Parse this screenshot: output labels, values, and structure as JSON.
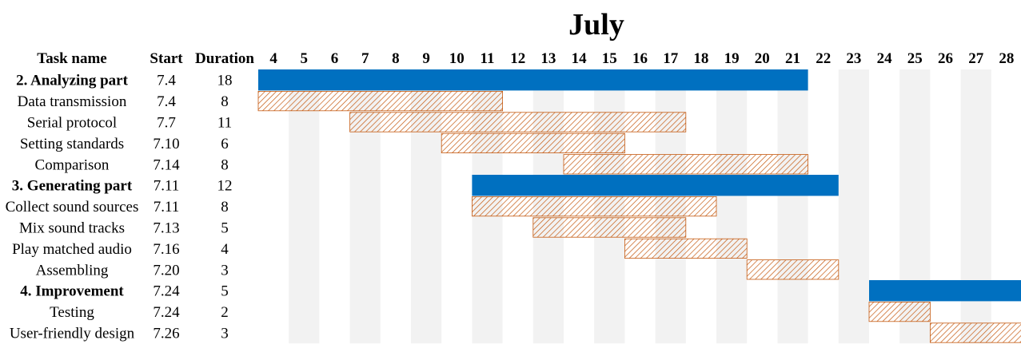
{
  "chart_data": {
    "type": "gantt",
    "title": "July",
    "columns": {
      "task": "Task name",
      "start": "Start",
      "duration": "Duration"
    },
    "days": [
      "4",
      "5",
      "6",
      "7",
      "8",
      "9",
      "10",
      "11",
      "12",
      "13",
      "14",
      "15",
      "16",
      "17",
      "18",
      "19",
      "20",
      "21",
      "22",
      "23",
      "24",
      "25",
      "26",
      "27",
      "28"
    ],
    "tasks": [
      {
        "name": "2. Analyzing part",
        "start_label": "7.4",
        "start_day": 4,
        "duration": 18,
        "group": true
      },
      {
        "name": "Data transmission",
        "start_label": "7.4",
        "start_day": 4,
        "duration": 8,
        "group": false
      },
      {
        "name": "Serial protocol",
        "start_label": "7.7",
        "start_day": 7,
        "duration": 11,
        "group": false
      },
      {
        "name": "Setting standards",
        "start_label": "7.10",
        "start_day": 10,
        "duration": 6,
        "group": false
      },
      {
        "name": "Comparison",
        "start_label": "7.14",
        "start_day": 14,
        "duration": 8,
        "group": false
      },
      {
        "name": "3. Generating part",
        "start_label": "7.11",
        "start_day": 11,
        "duration": 12,
        "group": true
      },
      {
        "name": "Collect sound sources",
        "start_label": "7.11",
        "start_day": 11,
        "duration": 8,
        "group": false
      },
      {
        "name": "Mix sound tracks",
        "start_label": "7.13",
        "start_day": 13,
        "duration": 5,
        "group": false
      },
      {
        "name": "Play matched audio",
        "start_label": "7.16",
        "start_day": 16,
        "duration": 4,
        "group": false
      },
      {
        "name": "Assembling",
        "start_label": "7.20",
        "start_day": 20,
        "duration": 3,
        "group": false
      },
      {
        "name": "4. Improvement",
        "start_label": "7.24",
        "start_day": 24,
        "duration": 5,
        "group": true
      },
      {
        "name": "Testing",
        "start_label": "7.24",
        "start_day": 24,
        "duration": 2,
        "group": false
      },
      {
        "name": "User-friendly design",
        "start_label": "7.26",
        "start_day": 26,
        "duration": 3,
        "group": false
      }
    ],
    "colors": {
      "group_bar": "#0070c0",
      "task_hatch": "#c55a11",
      "band": "#f2f2f2"
    }
  }
}
